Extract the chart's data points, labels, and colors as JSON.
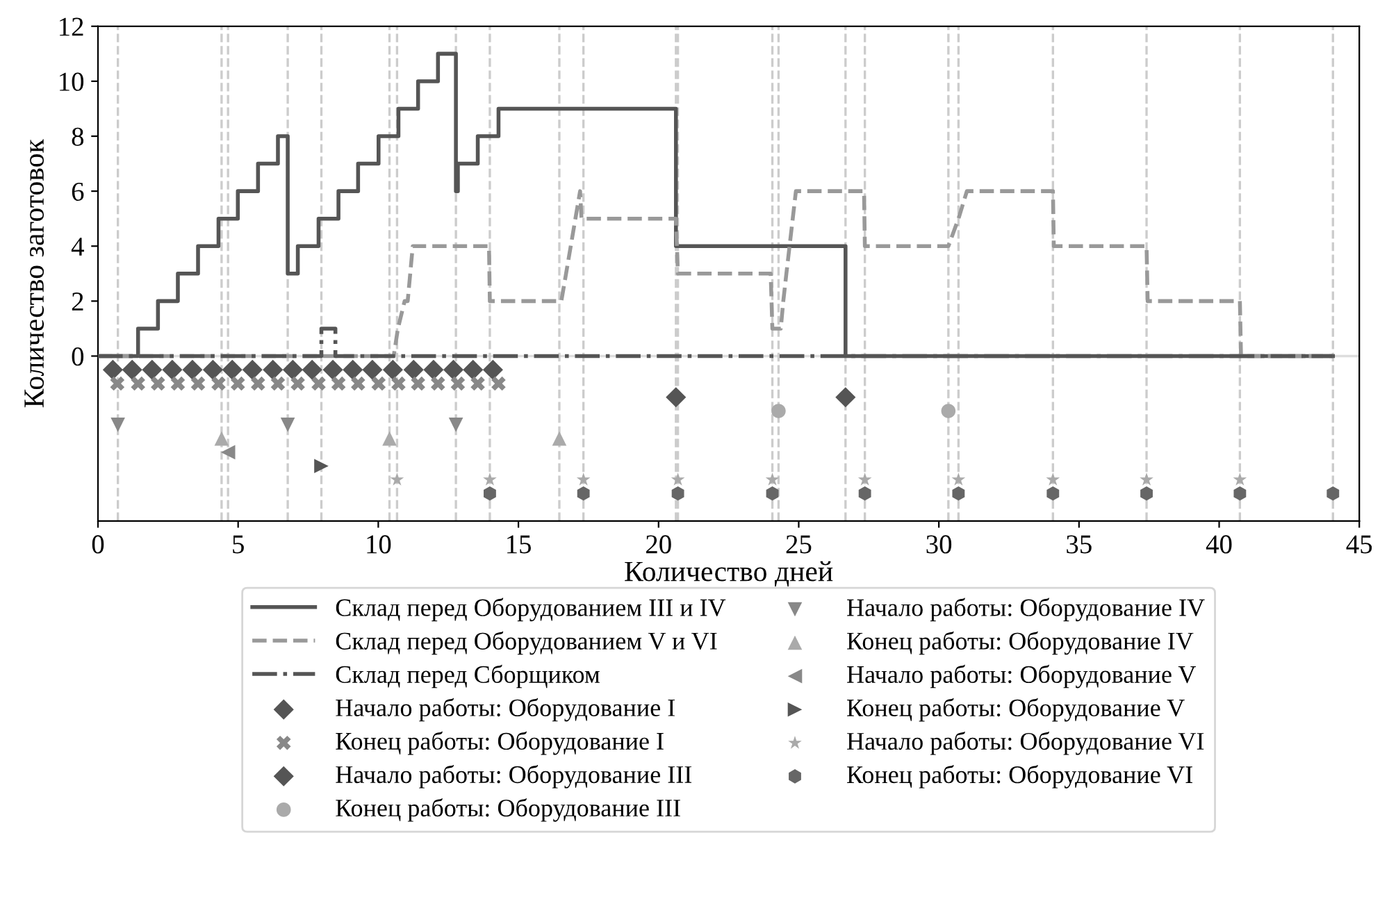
{
  "chart_data": {
    "type": "scatter",
    "xlabel": "Количество дней",
    "ylabel": "Количество заготовок",
    "xlim": [
      0,
      45
    ],
    "xticks": [
      0,
      5,
      10,
      15,
      20,
      25,
      30,
      35,
      40,
      45
    ],
    "ylim": [
      -6,
      12
    ],
    "yticks": [
      0,
      2,
      4,
      6,
      8,
      10,
      12
    ],
    "grid": false,
    "legend": "bottom",
    "series": [
      {
        "name": "Склад перед Оборудованием III и IV",
        "type": "step",
        "color": "#555555",
        "line_style": "solid",
        "marker": "none",
        "x": [
          0,
          1.43,
          2.14,
          2.85,
          3.57,
          4.3,
          4.99,
          5.71,
          6.42,
          6.77,
          7.13,
          7.87,
          8.58,
          9.28,
          10.01,
          10.72,
          11.42,
          12.13,
          12.77,
          12.84,
          13.55,
          14.29,
          20.62,
          26.67,
          44.06
        ],
        "values": [
          0,
          1,
          2,
          3,
          4,
          5,
          6,
          7,
          8,
          3,
          4,
          5,
          6,
          7,
          8,
          9,
          10,
          11,
          6,
          7,
          8,
          9,
          4,
          0,
          0
        ]
      },
      {
        "name": "Склад перед Оборудованием V и VI",
        "type": "line",
        "color": "#999999",
        "line_style": "dashed",
        "marker": "none",
        "x": [
          0,
          10.55,
          10.7,
          10.94,
          11.05,
          11.23,
          13.95,
          13.98,
          16.53,
          16.7,
          17.2,
          17.25,
          17.32,
          20.62,
          20.69,
          24.0,
          24.06,
          24.36,
          24.45,
          24.56,
          24.9,
          27.33,
          27.36,
          30.34,
          30.7,
          31.0,
          34.07,
          34.1,
          37.41,
          37.45,
          40.74,
          40.78,
          44.06
        ],
        "values": [
          0,
          0,
          1,
          2,
          2,
          4,
          4,
          2,
          2,
          3,
          6,
          5,
          5,
          5,
          3,
          3,
          1,
          1,
          2,
          3,
          6,
          6,
          4,
          4,
          5,
          6,
          6,
          4,
          4,
          2,
          2,
          0,
          0
        ]
      },
      {
        "name": "Склад перед Сборщиком",
        "type": "step",
        "color": "#555555",
        "line_style": "dashdot",
        "marker": "none",
        "x": [
          0,
          7.97,
          8.47,
          44.06
        ],
        "values": [
          0,
          1,
          0,
          0
        ]
      },
      {
        "name": "Начало работы: Оборудование I",
        "color": "#555555",
        "marker": "diamond",
        "x": [
          0.53,
          1.22,
          1.93,
          2.65,
          3.37,
          4.1,
          4.79,
          5.51,
          6.24,
          6.95,
          7.64,
          8.38,
          9.09,
          9.79,
          10.52,
          11.26,
          11.97,
          12.68,
          13.38,
          14.09
        ],
        "values": [
          -0.5,
          -0.5,
          -0.5,
          -0.5,
          -0.5,
          -0.5,
          -0.5,
          -0.5,
          -0.5,
          -0.5,
          -0.5,
          -0.5,
          -0.5,
          -0.5,
          -0.5,
          -0.5,
          -0.5,
          -0.5,
          -0.5,
          -0.5
        ]
      },
      {
        "name": "Конец работы: Оборудование I",
        "color": "#888888",
        "marker": "cross",
        "x": [
          0.69,
          1.43,
          2.14,
          2.85,
          3.57,
          4.3,
          4.99,
          5.71,
          6.42,
          7.13,
          7.87,
          8.58,
          9.28,
          10.01,
          10.72,
          11.42,
          12.13,
          12.84,
          13.55,
          14.29
        ],
        "values": [
          -1,
          -1,
          -1,
          -1,
          -1,
          -1,
          -1,
          -1,
          -1,
          -1,
          -1,
          -1,
          -1,
          -1,
          -1,
          -1,
          -1,
          -1,
          -1,
          -1
        ]
      },
      {
        "name": "Начало работы: Оборудование III",
        "color": "#555555",
        "marker": "diamond",
        "x": [
          20.62,
          26.67
        ],
        "values": [
          -1.5,
          -1.5
        ]
      },
      {
        "name": "Конец работы: Оборудование III",
        "color": "#aaaaaa",
        "marker": "circle",
        "x": [
          24.28,
          30.34
        ],
        "values": [
          -2,
          -2
        ]
      },
      {
        "name": "Начало работы: Оборудование IV",
        "color": "#888888",
        "marker": "triangle_down",
        "x": [
          0.71,
          6.77,
          12.77
        ],
        "values": [
          -2.5,
          -2.5,
          -2.5
        ]
      },
      {
        "name": "Конец работы: Оборудование IV",
        "color": "#aaaaaa",
        "marker": "triangle",
        "x": [
          4.41,
          10.4,
          16.46
        ],
        "values": [
          -3,
          -3,
          -3
        ]
      },
      {
        "name": "Начало работы: Оборудование V",
        "color": "#888888",
        "marker": "triangle_left",
        "x": [
          4.64
        ],
        "values": [
          -3.5
        ]
      },
      {
        "name": "Конец работы: Оборудование V",
        "color": "#555555",
        "marker": "triangle_right",
        "x": [
          7.97
        ],
        "values": [
          -4
        ]
      },
      {
        "name": "Начало работы: Оборудование VI",
        "color": "#aaaaaa",
        "marker": "star",
        "x": [
          10.67,
          13.98,
          17.32,
          20.69,
          24.06,
          27.36,
          30.7,
          34.07,
          37.41,
          40.74
        ],
        "values": [
          -4.5,
          -4.5,
          -4.5,
          -4.5,
          -4.5,
          -4.5,
          -4.5,
          -4.5,
          -4.5,
          -4.5
        ]
      },
      {
        "name": "Конец работы: Оборудование VI",
        "color": "#666666",
        "x": [
          13.98,
          17.32,
          20.69,
          24.06,
          27.36,
          30.7,
          34.07,
          37.41,
          40.74,
          44.06
        ],
        "values": [
          -5,
          -5,
          -5,
          -5,
          -5,
          -5,
          -5,
          -5,
          -5,
          -5
        ]
      }
    ],
    "ref_lines": [
      {
        "axis": "y",
        "value": 0,
        "color": "#dddddd",
        "line_style": "solid"
      },
      {
        "axis": "x",
        "value": 0.71,
        "color": "#cccccc",
        "line_style": "dashed"
      },
      {
        "axis": "x",
        "value": 4.41,
        "color": "#cccccc",
        "line_style": "dashed"
      },
      {
        "axis": "x",
        "value": 4.64,
        "color": "#cccccc",
        "line_style": "dashed"
      },
      {
        "axis": "x",
        "value": 6.77,
        "color": "#cccccc",
        "line_style": "dashed"
      },
      {
        "axis": "x",
        "value": 7.97,
        "color": "#cccccc",
        "line_style": "dashed"
      },
      {
        "axis": "x",
        "value": 10.4,
        "color": "#cccccc",
        "line_style": "dashed"
      },
      {
        "axis": "x",
        "value": 10.67,
        "color": "#cccccc",
        "line_style": "dashed"
      },
      {
        "axis": "x",
        "value": 12.77,
        "color": "#cccccc",
        "line_style": "dashed"
      },
      {
        "axis": "x",
        "value": 13.98,
        "color": "#cccccc",
        "line_style": "dashed"
      },
      {
        "axis": "x",
        "value": 16.46,
        "color": "#cccccc",
        "line_style": "dashed"
      },
      {
        "axis": "x",
        "value": 17.32,
        "color": "#cccccc",
        "line_style": "dashed"
      },
      {
        "axis": "x",
        "value": 20.62,
        "color": "#cccccc",
        "line_style": "dashed"
      },
      {
        "axis": "x",
        "value": 20.69,
        "color": "#cccccc",
        "line_style": "dashed"
      },
      {
        "axis": "x",
        "value": 24.06,
        "color": "#cccccc",
        "line_style": "dashed"
      },
      {
        "axis": "x",
        "value": 24.28,
        "color": "#cccccc",
        "line_style": "dashed"
      },
      {
        "axis": "x",
        "value": 26.67,
        "color": "#cccccc",
        "line_style": "dashed"
      },
      {
        "axis": "x",
        "value": 27.36,
        "color": "#cccccc",
        "line_style": "dashed"
      },
      {
        "axis": "x",
        "value": 30.34,
        "color": "#cccccc",
        "line_style": "dashed"
      },
      {
        "axis": "x",
        "value": 30.7,
        "color": "#cccccc",
        "line_style": "dashed"
      },
      {
        "axis": "x",
        "value": 34.07,
        "color": "#cccccc",
        "line_style": "dashed"
      },
      {
        "axis": "x",
        "value": 37.41,
        "color": "#cccccc",
        "line_style": "dashed"
      },
      {
        "axis": "x",
        "value": 40.74,
        "color": "#cccccc",
        "line_style": "dashed"
      },
      {
        "axis": "x",
        "value": 44.06,
        "color": "#cccccc",
        "line_style": "dashed"
      }
    ]
  }
}
